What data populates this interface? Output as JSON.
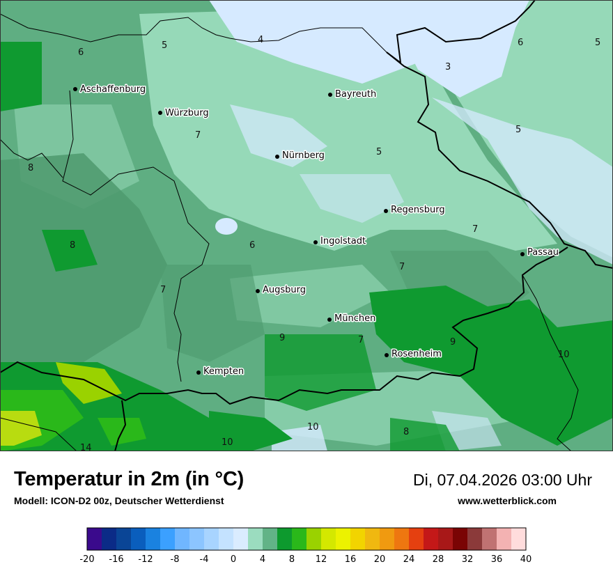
{
  "header": {
    "title": "Temperatur in 2m (in °C)",
    "subtitle": "Modell: ICON-D2 00z, Deutscher Wetterdienst",
    "datetime": "Di, 07.04.2026 03:00 Uhr",
    "website": "www.wetterblick.com"
  },
  "map": {
    "cities": [
      {
        "name": "Aschaffenburg"
      },
      {
        "name": "Würzburg"
      },
      {
        "name": "Bayreuth"
      },
      {
        "name": "Nürnberg"
      },
      {
        "name": "Regensburg"
      },
      {
        "name": "Ingolstadt"
      },
      {
        "name": "Passau"
      },
      {
        "name": "Augsburg"
      },
      {
        "name": "München"
      },
      {
        "name": "Rosenheim"
      },
      {
        "name": "Kempten"
      }
    ],
    "isotherm_labels": [
      "6",
      "5",
      "4",
      "3",
      "6",
      "5",
      "7",
      "5",
      "5",
      "8",
      "8",
      "6",
      "7",
      "7",
      "7",
      "9",
      "7",
      "9",
      "10",
      "10",
      "10",
      "8",
      "14"
    ]
  },
  "legend": {
    "ticks": [
      "-20",
      "-16",
      "-12",
      "-8",
      "-4",
      "0",
      "4",
      "8",
      "12",
      "16",
      "20",
      "24",
      "28",
      "32",
      "36",
      "40"
    ],
    "colors": [
      "#3a0a8c",
      "#0b2b87",
      "#0a4596",
      "#0a5ebd",
      "#1a82e0",
      "#3ba0ff",
      "#70b6ff",
      "#8cc5ff",
      "#a8d4ff",
      "#c4e2ff",
      "#daecff",
      "#9bdcbf",
      "#62b387",
      "#0d9a2e",
      "#2ab81a",
      "#9ad200",
      "#d4e800",
      "#ecf200",
      "#f2d400",
      "#f0b810",
      "#f09a10",
      "#ee7710",
      "#e54010",
      "#c41818",
      "#a81818",
      "#7a0404",
      "#8b3a3a",
      "#c07272",
      "#f3b2b2",
      "#ffdcdc"
    ]
  }
}
